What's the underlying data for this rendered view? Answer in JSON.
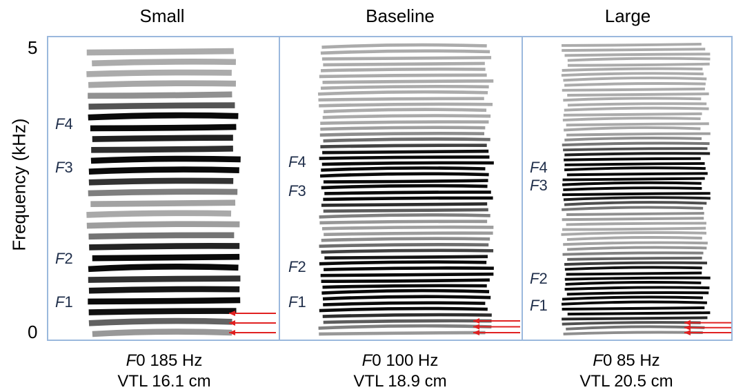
{
  "figure": {
    "ylabel": "Frequency (kHz)",
    "yticks": [
      "5",
      "0"
    ],
    "panels": [
      {
        "title": "Small",
        "f0_label_italic": "F",
        "f0_label_rest": "0 185 Hz",
        "vtl_label": "VTL 16.1 cm",
        "formants": [
          {
            "sym": "F",
            "num": "4",
            "khz": 3.6
          },
          {
            "sym": "F",
            "num": "3",
            "khz": 2.85
          },
          {
            "sym": "F",
            "num": "2",
            "khz": 1.3
          },
          {
            "sym": "F",
            "num": "1",
            "khz": 0.55
          }
        ],
        "f0_hz": 185
      },
      {
        "title": "Baseline",
        "f0_label_italic": "F",
        "f0_label_rest": "0 100 Hz",
        "vtl_label": "VTL 18.9 cm",
        "formants": [
          {
            "sym": "F",
            "num": "4",
            "khz": 2.95
          },
          {
            "sym": "F",
            "num": "3",
            "khz": 2.45
          },
          {
            "sym": "F",
            "num": "2",
            "khz": 1.15
          },
          {
            "sym": "F",
            "num": "1",
            "khz": 0.55
          }
        ],
        "f0_hz": 100
      },
      {
        "title": "Large",
        "f0_label_italic": "F",
        "f0_label_rest": "0 85 Hz",
        "vtl_label": "VTL 20.5 cm",
        "formants": [
          {
            "sym": "F",
            "num": "4",
            "khz": 2.85
          },
          {
            "sym": "F",
            "num": "3",
            "khz": 2.55
          },
          {
            "sym": "F",
            "num": "2",
            "khz": 0.95
          },
          {
            "sym": "F",
            "num": "1",
            "khz": 0.5
          }
        ],
        "f0_hz": 85
      }
    ],
    "arrow_color": "#e02020",
    "frame_color": "#9ab8dd"
  }
}
